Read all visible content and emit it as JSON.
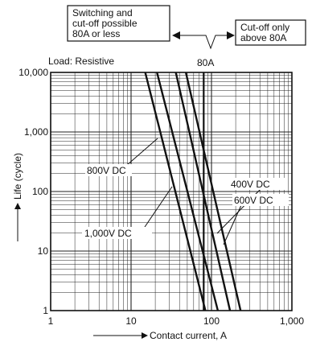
{
  "chart_data": {
    "type": "line",
    "x_scale": "log",
    "y_scale": "log",
    "xlim": [
      1,
      1000
    ],
    "ylim": [
      1,
      10000
    ],
    "grid": true,
    "xlabel": "Contact current, A",
    "ylabel": "Life (cycle)",
    "x_tick_labels": [
      "1",
      "10",
      "100",
      "1,000"
    ],
    "y_tick_labels": [
      "1",
      "10",
      "100",
      "1,000",
      "10,000"
    ],
    "load_label": "Load: Resistive",
    "annotations": {
      "left_box": [
        "Switching and",
        "cut-off possible",
        "80A or less"
      ],
      "right_box": [
        "Cut-off only",
        "above 80A"
      ],
      "boundary_label": "80A",
      "boundary_value": 80
    },
    "series": [
      {
        "name": "1,000V DC",
        "points": [
          [
            15,
            10000
          ],
          [
            84,
            1
          ]
        ]
      },
      {
        "name": "800V DC",
        "points": [
          [
            21,
            10000
          ],
          [
            120,
            1
          ]
        ]
      },
      {
        "name": "600V DC",
        "points": [
          [
            36,
            10000
          ],
          [
            170,
            1
          ]
        ]
      },
      {
        "name": "400V DC",
        "points": [
          [
            48,
            10000
          ],
          [
            230,
            1
          ]
        ]
      }
    ]
  }
}
